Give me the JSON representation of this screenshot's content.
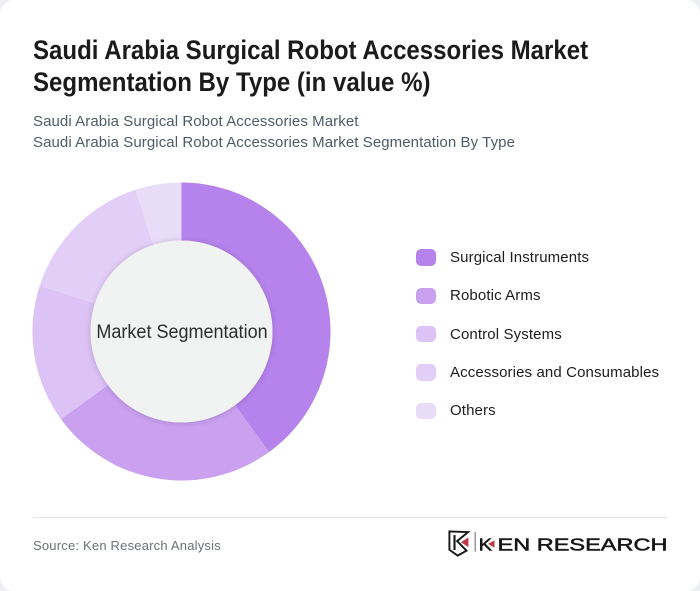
{
  "header": {
    "title": "Saudi Arabia Surgical Robot Accessories Market Segmentation By Type (in value %)",
    "subtitle_line1": "Saudi Arabia Surgical Robot Accessories Market",
    "subtitle_line2": "Saudi Arabia Surgical Robot Accessories Market Segmentation By Type"
  },
  "chart_data": {
    "type": "pie",
    "variant": "donut",
    "title": "Saudi Arabia Surgical Robot Accessories Market Segmentation By Type (in value %)",
    "center_label": "Market Segmentation",
    "categories": [
      "Surgical Instruments",
      "Robotic Arms",
      "Control Systems",
      "Accessories and Consumables",
      "Others"
    ],
    "values": [
      40,
      25,
      15,
      15,
      5
    ],
    "unit": "value %",
    "colors": [
      "#b583eb",
      "#c9a1ef",
      "#dcc2f5",
      "#e2cff7",
      "#e9dcf9"
    ],
    "start_angle_deg": 0,
    "direction": "clockwise",
    "legend_position": "right",
    "inner_circle_color": "#f1f2f2"
  },
  "legend": {
    "items": [
      {
        "label": "Surgical Instruments",
        "color": "#b583eb"
      },
      {
        "label": "Robotic Arms",
        "color": "#c9a1ef"
      },
      {
        "label": "Control Systems",
        "color": "#dcc2f5"
      },
      {
        "label": "Accessories and Consumables",
        "color": "#e2cff7"
      },
      {
        "label": "Others",
        "color": "#e9dcf9"
      }
    ]
  },
  "footer": {
    "source_text": "Source: Ken Research Analysis",
    "logo_wordmark_k": "K",
    "logo_wordmark_rest": "EN RESEARCH",
    "logo_accent_color": "#c23845",
    "logo_ink_color": "#161616"
  }
}
